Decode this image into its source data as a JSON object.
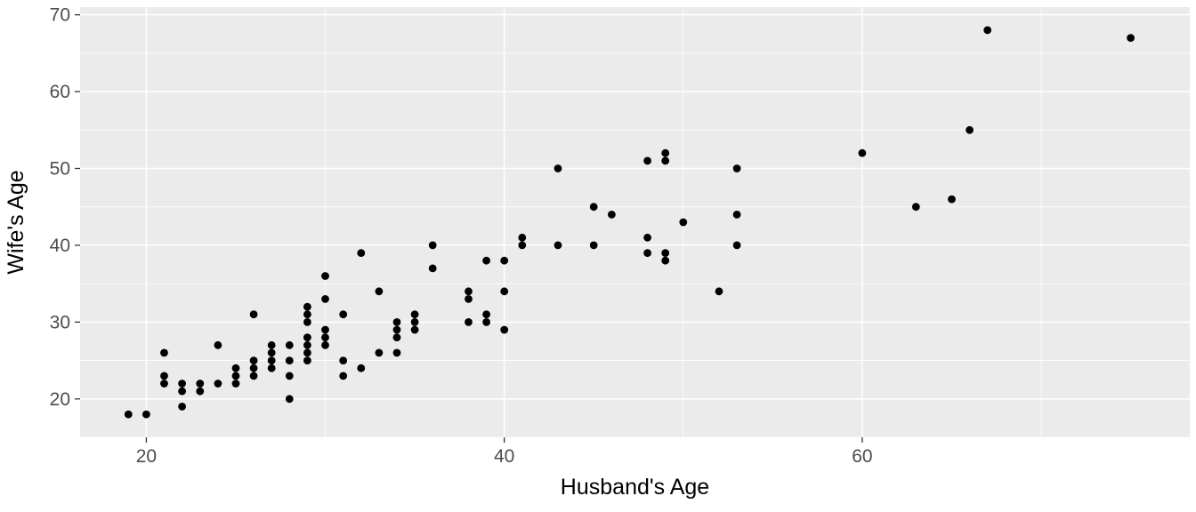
{
  "figure": {
    "background": "#FFFFFF",
    "panel_background": "#EBEBEB",
    "grid_color": "#FFFFFF",
    "point_color": "#000000",
    "tick_label_color": "#4D4D4D",
    "axis_title_color": "#000000",
    "tick_mark_color": "#333333"
  },
  "chart_data": {
    "type": "scatter",
    "title": "",
    "xlabel": "Husband's Age",
    "ylabel": "Wife's Age",
    "x_ticks": [
      20,
      40,
      60
    ],
    "y_ticks": [
      20,
      30,
      40,
      50,
      60,
      70
    ],
    "x_minor_ticks": [
      30,
      50,
      70
    ],
    "y_minor_ticks": [
      15,
      25,
      35,
      45,
      55,
      65
    ],
    "xlim": [
      16.3,
      78.3
    ],
    "ylim": [
      15,
      71
    ],
    "grid": true,
    "legend": "none",
    "points": [
      [
        19,
        18
      ],
      [
        20,
        18
      ],
      [
        21,
        26
      ],
      [
        21,
        23
      ],
      [
        21,
        22
      ],
      [
        22,
        22
      ],
      [
        22,
        21
      ],
      [
        22,
        19
      ],
      [
        23,
        22
      ],
      [
        23,
        21
      ],
      [
        24,
        27
      ],
      [
        24,
        22
      ],
      [
        25,
        24
      ],
      [
        25,
        23
      ],
      [
        25,
        22
      ],
      [
        26,
        31
      ],
      [
        26,
        25
      ],
      [
        26,
        24
      ],
      [
        26,
        23
      ],
      [
        27,
        27
      ],
      [
        27,
        26
      ],
      [
        27,
        25
      ],
      [
        27,
        24
      ],
      [
        28,
        27
      ],
      [
        28,
        25
      ],
      [
        28,
        23
      ],
      [
        28,
        20
      ],
      [
        29,
        32
      ],
      [
        29,
        31
      ],
      [
        29,
        30
      ],
      [
        29,
        28
      ],
      [
        29,
        27
      ],
      [
        29,
        26
      ],
      [
        29,
        25
      ],
      [
        30,
        36
      ],
      [
        30,
        33
      ],
      [
        30,
        29
      ],
      [
        30,
        28
      ],
      [
        30,
        27
      ],
      [
        31,
        31
      ],
      [
        31,
        25
      ],
      [
        31,
        23
      ],
      [
        32,
        39
      ],
      [
        32,
        24
      ],
      [
        33,
        34
      ],
      [
        33,
        26
      ],
      [
        34,
        30
      ],
      [
        34,
        29
      ],
      [
        34,
        28
      ],
      [
        34,
        26
      ],
      [
        35,
        31
      ],
      [
        35,
        30
      ],
      [
        35,
        29
      ],
      [
        36,
        40
      ],
      [
        36,
        37
      ],
      [
        38,
        34
      ],
      [
        38,
        33
      ],
      [
        38,
        30
      ],
      [
        39,
        38
      ],
      [
        39,
        31
      ],
      [
        39,
        30
      ],
      [
        40,
        38
      ],
      [
        40,
        34
      ],
      [
        40,
        29
      ],
      [
        41,
        41
      ],
      [
        41,
        40
      ],
      [
        43,
        50
      ],
      [
        43,
        40
      ],
      [
        45,
        45
      ],
      [
        45,
        40
      ],
      [
        46,
        44
      ],
      [
        48,
        51
      ],
      [
        48,
        41
      ],
      [
        48,
        39
      ],
      [
        49,
        52
      ],
      [
        49,
        51
      ],
      [
        49,
        39
      ],
      [
        49,
        38
      ],
      [
        50,
        43
      ],
      [
        52,
        34
      ],
      [
        53,
        50
      ],
      [
        53,
        44
      ],
      [
        53,
        40
      ],
      [
        60,
        52
      ],
      [
        63,
        45
      ],
      [
        65,
        46
      ],
      [
        66,
        55
      ],
      [
        67,
        68
      ],
      [
        75,
        67
      ]
    ]
  }
}
